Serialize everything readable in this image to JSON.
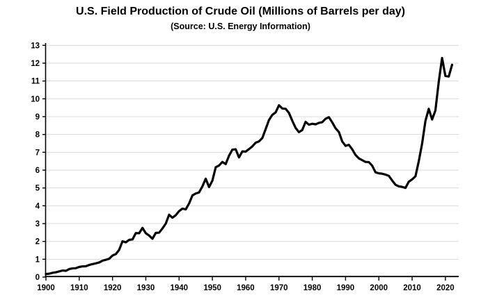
{
  "chart_data": {
    "type": "line",
    "title": "U.S. Field Production of Crude Oil (Millions of Barrels per day)",
    "subtitle": "(Source: U.S. Energy Information)",
    "xlabel": "",
    "ylabel": "",
    "xlim": [
      1900,
      2024
    ],
    "ylim": [
      0,
      13
    ],
    "xticks": [
      1900,
      1910,
      1920,
      1930,
      1940,
      1950,
      1960,
      1970,
      1980,
      1990,
      2000,
      2010,
      2020
    ],
    "yticks": [
      0,
      1,
      2,
      3,
      4,
      5,
      6,
      7,
      8,
      9,
      10,
      11,
      12,
      13
    ],
    "grid": true,
    "legend": false,
    "series": [
      {
        "name": "U.S. crude oil field production (million barrels per day)",
        "x_start": 1900,
        "x_end": 2022,
        "x_step": 1,
        "values": [
          0.17,
          0.19,
          0.24,
          0.27,
          0.32,
          0.37,
          0.35,
          0.45,
          0.49,
          0.5,
          0.57,
          0.6,
          0.61,
          0.68,
          0.73,
          0.77,
          0.82,
          0.92,
          0.97,
          1.03,
          1.21,
          1.29,
          1.53,
          2.01,
          1.95,
          2.09,
          2.11,
          2.47,
          2.46,
          2.76,
          2.46,
          2.33,
          2.15,
          2.48,
          2.49,
          2.73,
          3.0,
          3.5,
          3.33,
          3.47,
          3.7,
          3.84,
          3.8,
          4.13,
          4.58,
          4.69,
          4.75,
          5.09,
          5.52,
          5.05,
          5.41,
          6.16,
          6.26,
          6.46,
          6.34,
          6.81,
          7.15,
          7.17,
          6.71,
          7.05,
          7.04,
          7.18,
          7.33,
          7.54,
          7.61,
          7.8,
          8.3,
          8.81,
          9.1,
          9.24,
          9.64,
          9.46,
          9.44,
          9.21,
          8.77,
          8.37,
          8.13,
          8.25,
          8.71,
          8.55,
          8.6,
          8.57,
          8.65,
          8.69,
          8.88,
          8.97,
          8.68,
          8.35,
          8.14,
          7.61,
          7.36,
          7.42,
          7.17,
          6.85,
          6.66,
          6.56,
          6.46,
          6.45,
          6.25,
          5.88,
          5.82,
          5.8,
          5.75,
          5.68,
          5.42,
          5.18,
          5.09,
          5.06,
          5.0,
          5.35,
          5.48,
          5.65,
          6.5,
          7.49,
          8.76,
          9.44,
          8.84,
          9.35,
          10.96,
          12.29,
          11.28,
          11.25,
          11.91
        ]
      }
    ],
    "colors": {
      "line": "#000000",
      "grid": "#d9d9d9",
      "axis": "#000000",
      "tick_text": "#000000",
      "background": "#ffffff"
    }
  }
}
